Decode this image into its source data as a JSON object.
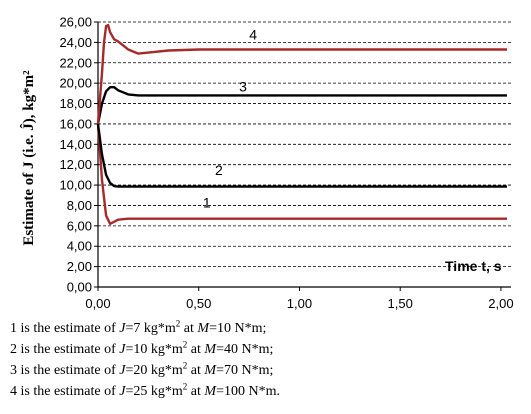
{
  "chart_data": {
    "type": "line",
    "ylabel": "Estimate of J (i.e. Ĵ), kg*m²",
    "xlabel": "Time t, s",
    "xlim": [
      0,
      2.05
    ],
    "ylim": [
      0,
      26
    ],
    "x_ticks": [
      "0,00",
      "0,50",
      "1,00",
      "1,50",
      "2,00"
    ],
    "x_tick_values": [
      0,
      0.5,
      1,
      1.5,
      2
    ],
    "y_ticks": [
      "0,00",
      "2,00",
      "4,00",
      "6,00",
      "8,00",
      "10,00",
      "12,00",
      "14,00",
      "16,00",
      "18,00",
      "20,00",
      "22,00",
      "24,00",
      "26,00"
    ],
    "y_tick_values": [
      0,
      2,
      4,
      6,
      8,
      10,
      12,
      14,
      16,
      18,
      20,
      22,
      24,
      26
    ],
    "grid": "horizontal-dashed",
    "series": [
      {
        "name": "1",
        "color": "#a52a2a",
        "x": [
          0,
          0.02,
          0.04,
          0.06,
          0.08,
          0.1,
          0.15,
          0.2,
          0.3,
          2.03
        ],
        "y": [
          16,
          10.5,
          7.0,
          6.2,
          6.4,
          6.6,
          6.7,
          6.7,
          6.7,
          6.7
        ],
        "label_x": 0.54,
        "label_y": 7.8
      },
      {
        "name": "2",
        "color": "#000000",
        "x": [
          0,
          0.02,
          0.04,
          0.06,
          0.08,
          0.1,
          0.15,
          0.3,
          2.03
        ],
        "y": [
          16,
          13.0,
          11.0,
          10.2,
          9.9,
          9.85,
          9.85,
          9.85,
          9.85
        ],
        "label_x": 0.6,
        "label_y": 11.0
      },
      {
        "name": "3",
        "color": "#000000",
        "x": [
          0,
          0.02,
          0.04,
          0.06,
          0.08,
          0.1,
          0.15,
          0.2,
          0.3,
          2.03
        ],
        "y": [
          16,
          18.0,
          19.2,
          19.6,
          19.6,
          19.3,
          18.9,
          18.8,
          18.8,
          18.8
        ],
        "label_x": 0.72,
        "label_y": 19.2
      },
      {
        "name": "4",
        "color": "#a52a2a",
        "x": [
          0,
          0.02,
          0.03,
          0.04,
          0.05,
          0.06,
          0.08,
          0.1,
          0.15,
          0.2,
          0.25,
          0.35,
          0.5,
          2.03
        ],
        "y": [
          16,
          21.0,
          24.0,
          25.6,
          25.7,
          25.0,
          24.3,
          24.1,
          23.3,
          22.9,
          23.0,
          23.2,
          23.3,
          23.3
        ],
        "label_x": 0.77,
        "label_y": 24.3
      }
    ]
  },
  "legend": [
    {
      "pre": "1 is the estimate of ",
      "sym": "J",
      "mid": "=7 kg*m",
      "sup": "2",
      "post": " at ",
      "sym2": "M",
      "end": "=10 N*m;"
    },
    {
      "pre": "2 is the estimate of ",
      "sym": "J",
      "mid": "=10 kg*m",
      "sup": "2",
      "post": " at ",
      "sym2": "M",
      "end": "=40 N*m;"
    },
    {
      "pre": "3 is the estimate of ",
      "sym": "J",
      "mid": "=20 kg*m",
      "sup": "2",
      "post": " at ",
      "sym2": "M",
      "end": "=70 N*m;"
    },
    {
      "pre": "4 is the estimate of ",
      "sym": "J",
      "mid": "=25 kg*m",
      "sup": "2",
      "post": " at ",
      "sym2": "M",
      "end": "=100 N*m."
    }
  ]
}
